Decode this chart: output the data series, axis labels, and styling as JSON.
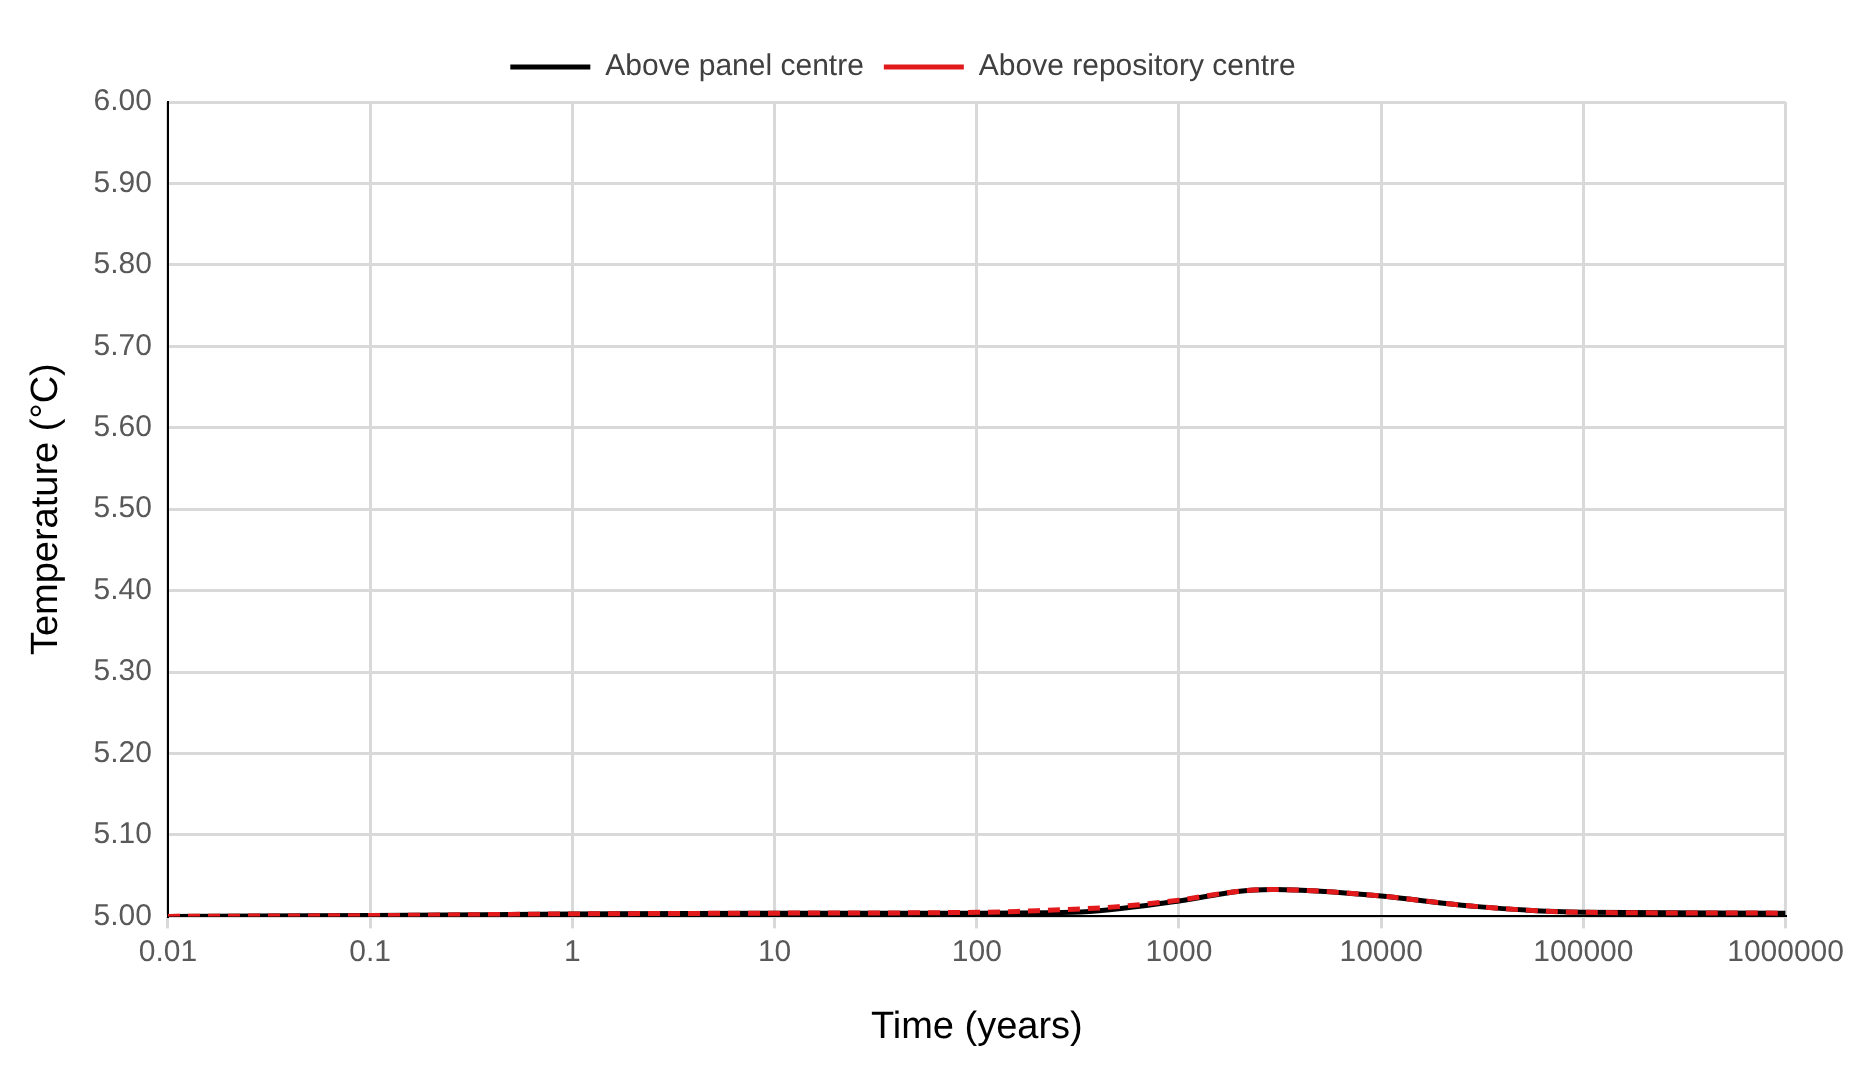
{
  "chart_data": {
    "type": "line",
    "xlabel": "Time (years)",
    "ylabel": "Temperature (°C)",
    "log": "x",
    "grid": true,
    "legend": "top",
    "marker": "none",
    "xlim": [
      0.01,
      1000000
    ],
    "xticks": [
      0.01,
      0.1,
      1,
      10,
      100,
      1000,
      10000,
      100000,
      1000000
    ],
    "ylim": [
      5,
      6
    ],
    "yticks": [
      {
        "value": 5,
        "label": "5.00"
      },
      {
        "value": 5.1,
        "label": "5.10"
      },
      {
        "value": 5.2,
        "label": "5.20"
      },
      {
        "value": 5.3,
        "label": "5.30"
      },
      {
        "value": 5.4,
        "label": "5.40"
      },
      {
        "value": 5.5,
        "label": "5.50"
      },
      {
        "value": 5.6,
        "label": "5.60"
      },
      {
        "value": 5.7,
        "label": "5.70"
      },
      {
        "value": 5.8,
        "label": "5.80"
      },
      {
        "value": 5.9,
        "label": "5.90"
      },
      {
        "value": 6,
        "label": "6.00"
      }
    ],
    "series": [
      {
        "name": "Above panel centre",
        "color": "#000000",
        "line_style": "solid",
        "x": [
          0.01,
          0.1,
          1,
          10,
          100,
          300,
          1000,
          2000,
          3000,
          5000,
          10000,
          30000,
          100000,
          1000000
        ],
        "values": [
          5.0,
          5.001,
          5.003,
          5.004,
          5.004,
          5.005,
          5.019,
          5.031,
          5.033,
          5.031,
          5.025,
          5.012,
          5.005,
          5.004
        ]
      },
      {
        "name": "Above repository centre",
        "color": "#e31a1c",
        "line_style": "dashed",
        "x": [
          0.01,
          0.1,
          1,
          10,
          100,
          200,
          500,
          1000,
          2000,
          3000,
          5000,
          10000,
          30000,
          100000,
          1000000
        ],
        "values": [
          5.0,
          5.001,
          5.003,
          5.004,
          5.005,
          5.007,
          5.012,
          5.02,
          5.031,
          5.033,
          5.031,
          5.025,
          5.012,
          5.005,
          5.004
        ]
      }
    ]
  }
}
